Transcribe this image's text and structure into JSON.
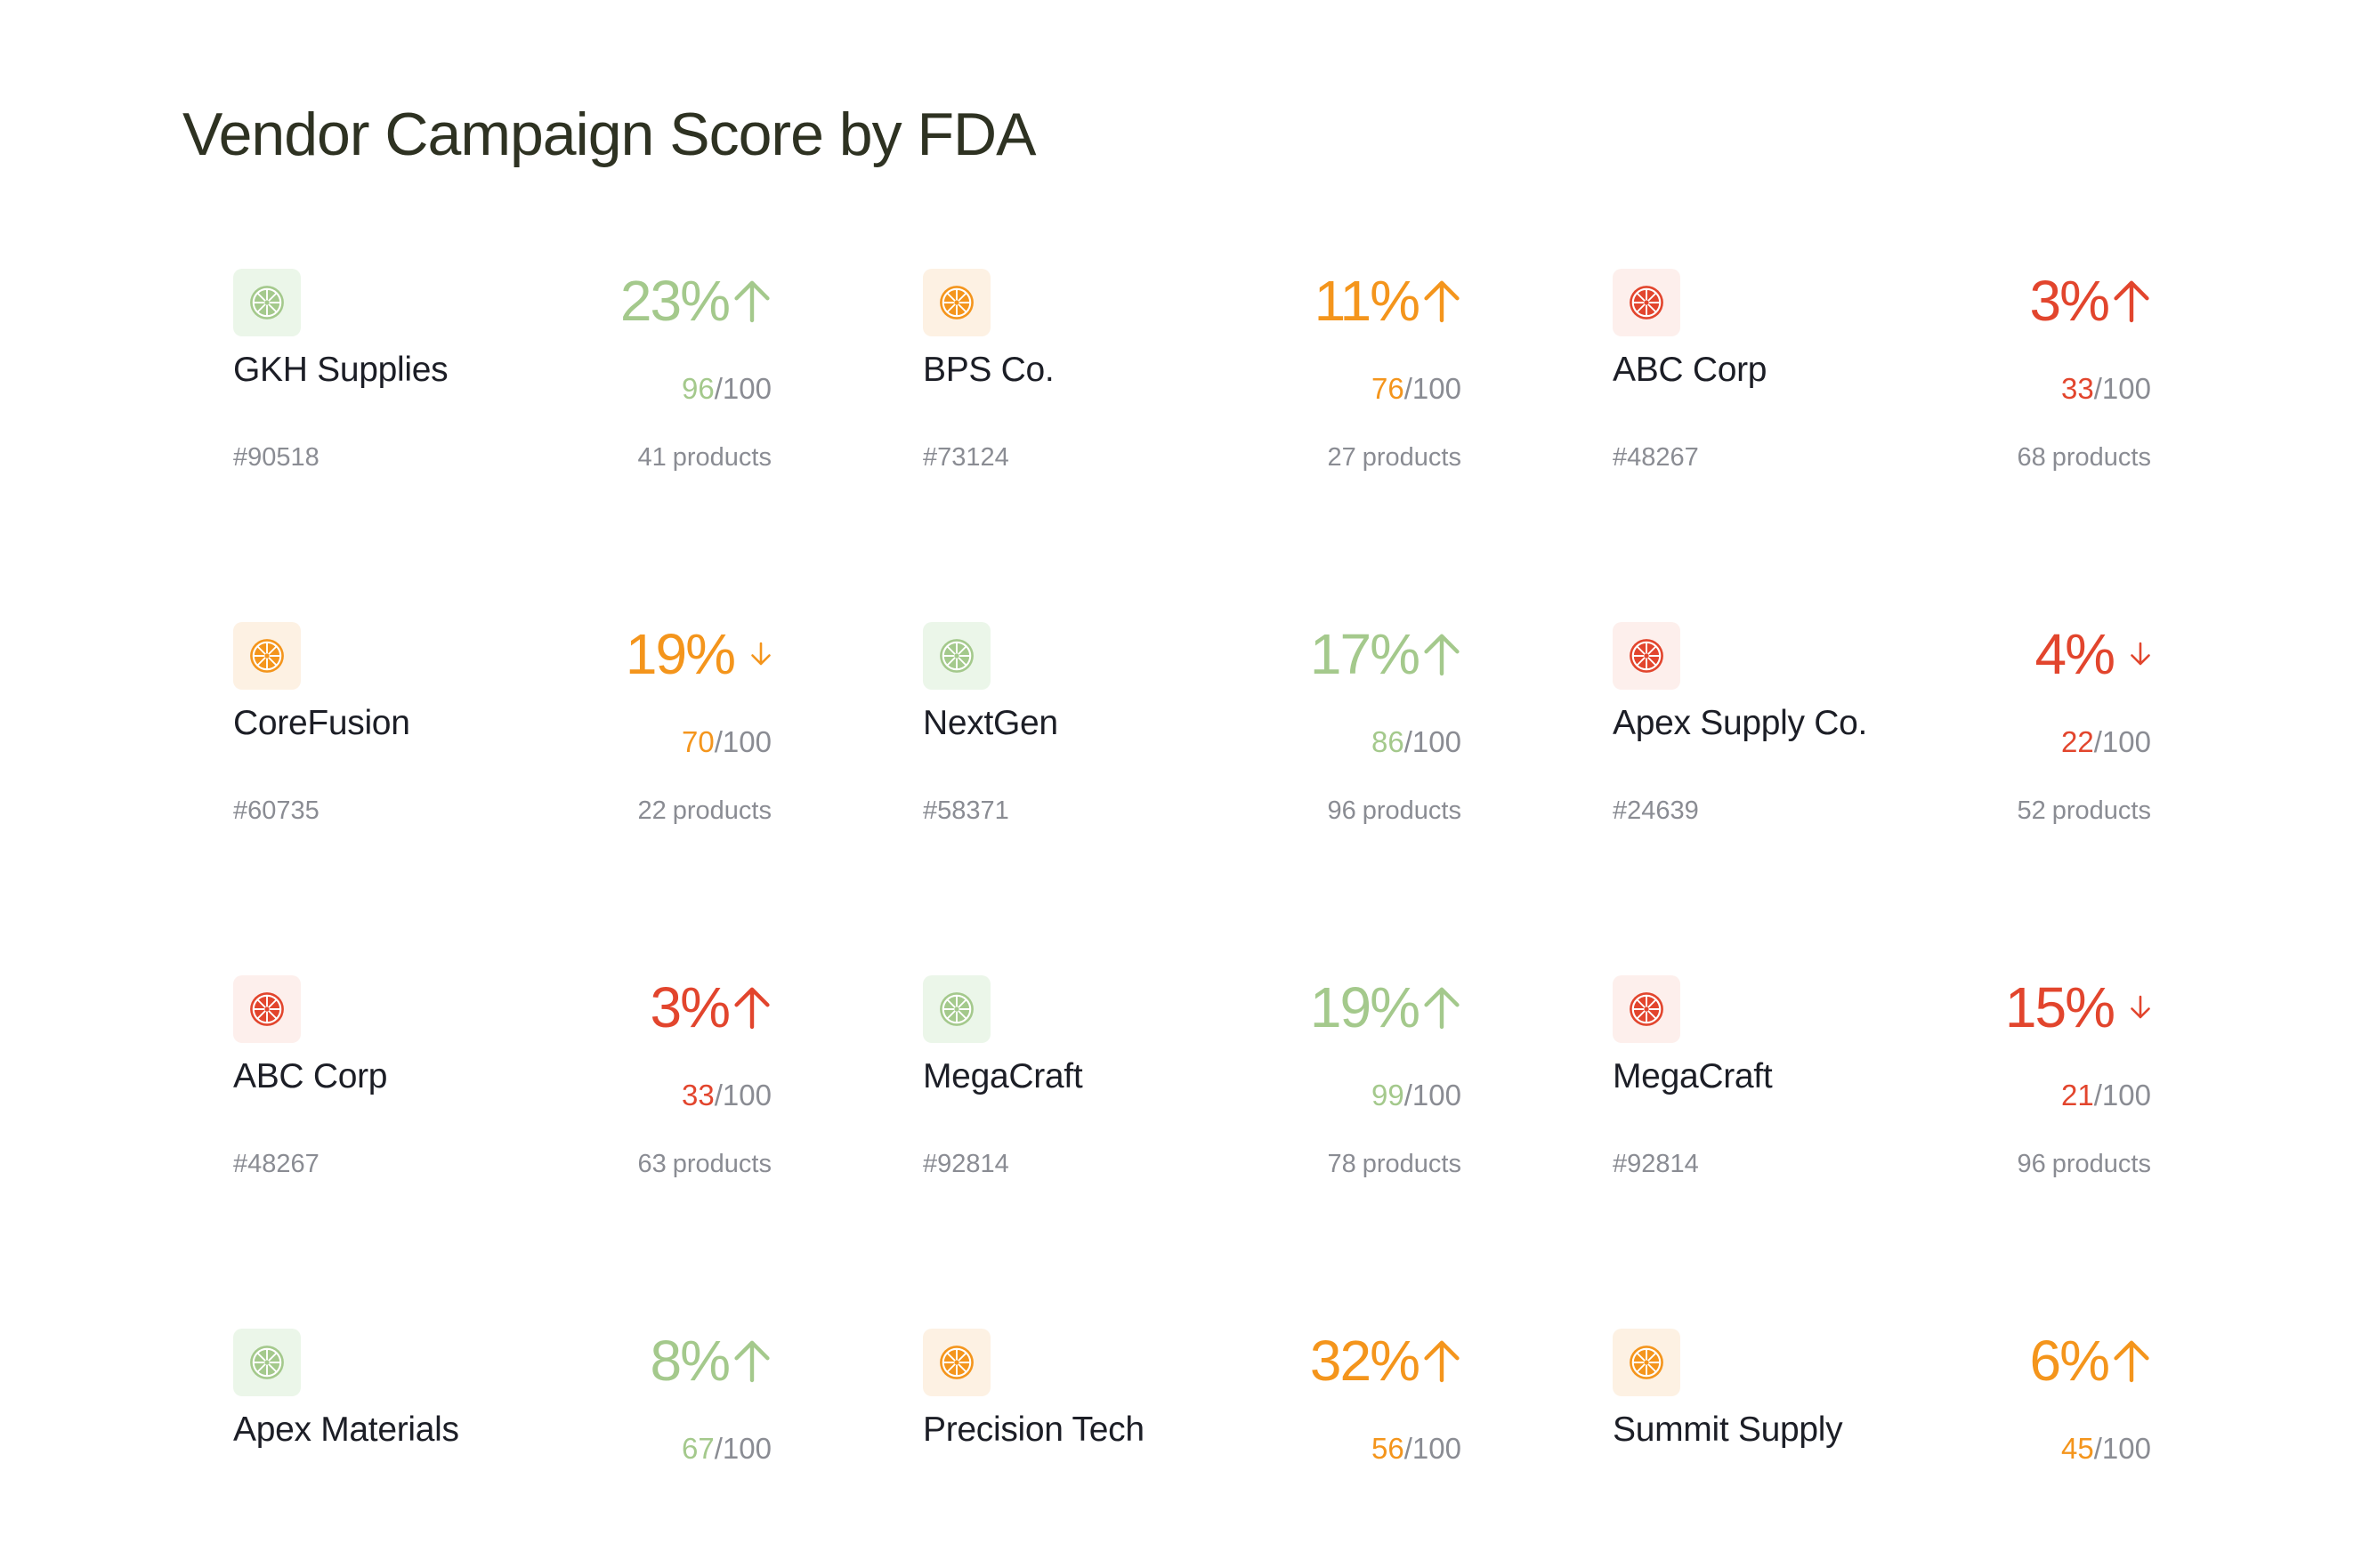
{
  "page": {
    "title": "Vendor Campaign Score by FDA"
  },
  "palette": {
    "green": {
      "fg": "#a4c98c",
      "bg": "#ebf6e9"
    },
    "orange": {
      "fg": "#f4951c",
      "bg": "#fdf1e3"
    },
    "red": {
      "fg": "#e2452d",
      "bg": "#fdefec"
    }
  },
  "score_max": "/100",
  "products_unit": "products",
  "vendors": [
    {
      "name": "GKH Supplies",
      "id": "#90518",
      "percent": "23%",
      "trend": "up",
      "score": "96",
      "products": "41",
      "color": "green",
      "icon": "citrus-icon"
    },
    {
      "name": "BPS Co.",
      "id": "#73124",
      "percent": "11%",
      "trend": "up",
      "score": "76",
      "products": "27",
      "color": "orange",
      "icon": "citrus-icon"
    },
    {
      "name": "ABC Corp",
      "id": "#48267",
      "percent": "3%",
      "trend": "up",
      "score": "33",
      "products": "68",
      "color": "red",
      "icon": "citrus-icon"
    },
    {
      "name": "CoreFusion",
      "id": "#60735",
      "percent": "19%",
      "trend": "down",
      "score": "70",
      "products": "22",
      "color": "orange",
      "icon": "citrus-icon"
    },
    {
      "name": "NextGen",
      "id": "#58371",
      "percent": "17%",
      "trend": "up",
      "score": "86",
      "products": "96",
      "color": "green",
      "icon": "citrus-icon"
    },
    {
      "name": "Apex Supply Co.",
      "id": "#24639",
      "percent": "4%",
      "trend": "down",
      "score": "22",
      "products": "52",
      "color": "red",
      "icon": "citrus-icon"
    },
    {
      "name": "ABC Corp",
      "id": "#48267",
      "percent": "3%",
      "trend": "up",
      "score": "33",
      "products": "63",
      "color": "red",
      "icon": "citrus-icon"
    },
    {
      "name": "MegaCraft",
      "id": "#92814",
      "percent": "19%",
      "trend": "up",
      "score": "99",
      "products": "78",
      "color": "green",
      "icon": "citrus-icon"
    },
    {
      "name": "MegaCraft",
      "id": "#92814",
      "percent": "15%",
      "trend": "down",
      "score": "21",
      "products": "96",
      "color": "red",
      "icon": "citrus-icon"
    },
    {
      "name": "Apex Materials",
      "id": "",
      "percent": "8%",
      "trend": "up",
      "score": "67",
      "products": "",
      "color": "green",
      "icon": "citrus-icon"
    },
    {
      "name": "Precision Tech",
      "id": "",
      "percent": "32%",
      "trend": "up",
      "score": "56",
      "products": "",
      "color": "orange",
      "icon": "citrus-icon"
    },
    {
      "name": "Summit Supply",
      "id": "",
      "percent": "6%",
      "trend": "up",
      "score": "45",
      "products": "",
      "color": "orange",
      "icon": "citrus-icon"
    }
  ]
}
